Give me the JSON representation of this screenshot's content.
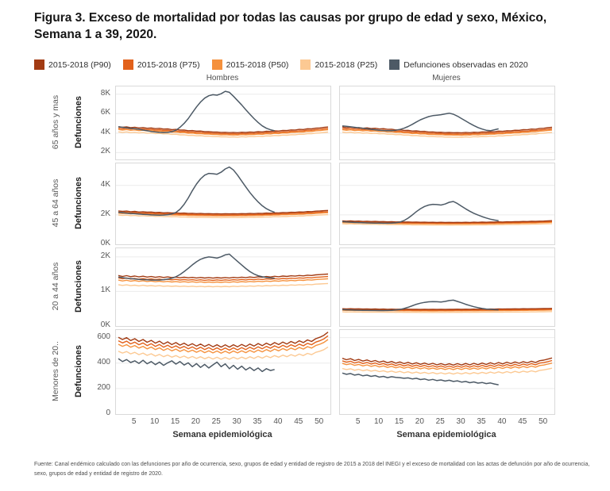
{
  "title": "Figura 3. Exceso de mortalidad por todas las causas por grupo de edad y sexo, México, Semana 1 a 39, 2020.",
  "footer": {
    "source": "Fuente: Canal endémico calculado con las defunciones por año de ocurrencia, sexo, grupos de edad y entidad de registro de 2015 a 2018 del INEGI y el exceso de mortalidad con las actas de defunción por año de ocurrencia, sexo, grupos de edad y entidad de registro de 2020."
  },
  "chart_data": {
    "type": "line",
    "title": "Exceso de mortalidad por todas las causas por grupo de edad y sexo, México, Semana 1 a 39, 2020",
    "columns": [
      "Hombres",
      "Mujeres"
    ],
    "y_axis_label": "Defunciones",
    "x_label": "Semana epidemiológica",
    "x_ticks": [
      5,
      10,
      15,
      20,
      25,
      30,
      35,
      40,
      45,
      50
    ],
    "baseline_week_range": [
      1,
      52
    ],
    "observed_week_range": [
      1,
      39
    ],
    "legend": [
      {
        "label": "2015-2018 (P90)",
        "color": "#a23b13"
      },
      {
        "label": "2015-2018 (P75)",
        "color": "#e2611b"
      },
      {
        "label": "2015-2018 (P50)",
        "color": "#f5913d"
      },
      {
        "label": "2015-2018 (P25)",
        "color": "#fcc993"
      },
      {
        "label": "Defunciones observadas en 2020",
        "color": "#4d5a66"
      }
    ],
    "rows": [
      {
        "label": "65 años y mas",
        "ylim": [
          1300,
          8800
        ],
        "ticks": [
          [
            2000,
            "2K"
          ],
          [
            4000,
            "4K"
          ],
          [
            6000,
            "6K"
          ],
          [
            8000,
            "8K"
          ]
        ],
        "band_factors": {
          "p90": 1.065,
          "p75": 1.03,
          "p25": 0.945
        }
      },
      {
        "label": "45 a 64 años",
        "ylim": [
          0,
          5500
        ],
        "ticks": [
          [
            0,
            "0K"
          ],
          [
            2000,
            "2K"
          ],
          [
            4000,
            "4K"
          ]
        ],
        "band_factors": {
          "p90": 1.07,
          "p75": 1.032,
          "p25": 0.94
        }
      },
      {
        "label": "20 a 44 años",
        "ylim": [
          0,
          2250
        ],
        "ticks": [
          [
            0,
            "0K"
          ],
          [
            1000,
            "1K"
          ],
          [
            2000,
            "2K"
          ]
        ],
        "band_factors": {
          "p90": 1.1,
          "p75": 1.048,
          "p25": 0.9
        }
      },
      {
        "label": "Menores de 20..",
        "ylim": [
          0,
          660
        ],
        "ticks": [
          [
            0,
            "0"
          ],
          [
            200,
            "200"
          ],
          [
            400,
            "400"
          ],
          [
            600,
            "600"
          ]
        ],
        "band_factors": {
          "p90": 1.1,
          "p75": 1.05,
          "p25": 0.9
        }
      }
    ],
    "panels": [
      [
        {
          "p50": [
            4380,
            4320,
            4370,
            4290,
            4330,
            4260,
            4300,
            4230,
            4260,
            4190,
            4220,
            4150,
            4170,
            4100,
            4120,
            4050,
            4060,
            3990,
            4010,
            3950,
            3960,
            3900,
            3910,
            3860,
            3870,
            3830,
            3840,
            3810,
            3830,
            3800,
            3850,
            3820,
            3870,
            3850,
            3900,
            3880,
            3940,
            3920,
            3980,
            3960,
            4020,
            4010,
            4070,
            4060,
            4120,
            4110,
            4180,
            4170,
            4240,
            4260,
            4310,
            4350
          ],
          "observed_2020": [
            4650,
            4600,
            4550,
            4500,
            4450,
            4400,
            4320,
            4250,
            4180,
            4120,
            4080,
            4060,
            4080,
            4150,
            4300,
            4600,
            5000,
            5500,
            6100,
            6700,
            7200,
            7600,
            7850,
            7950,
            7900,
            8050,
            8300,
            8200,
            7800,
            7350,
            6900,
            6400,
            5950,
            5500,
            5100,
            4750,
            4500,
            4350,
            4250
          ]
        },
        {
          "p50": [
            4350,
            4290,
            4340,
            4260,
            4300,
            4230,
            4270,
            4200,
            4230,
            4160,
            4190,
            4120,
            4140,
            4070,
            4090,
            4020,
            4030,
            3960,
            3980,
            3920,
            3930,
            3870,
            3880,
            3840,
            3850,
            3810,
            3820,
            3800,
            3810,
            3790,
            3830,
            3800,
            3850,
            3830,
            3880,
            3860,
            3910,
            3890,
            3950,
            3930,
            3990,
            3980,
            4040,
            4030,
            4090,
            4080,
            4150,
            4140,
            4210,
            4230,
            4280,
            4320
          ],
          "observed_2020": [
            4750,
            4700,
            4650,
            4600,
            4550,
            4500,
            4450,
            4400,
            4350,
            4300,
            4270,
            4250,
            4260,
            4300,
            4380,
            4500,
            4680,
            4900,
            5150,
            5380,
            5550,
            5700,
            5800,
            5850,
            5900,
            5980,
            6050,
            5950,
            5750,
            5500,
            5250,
            5000,
            4780,
            4580,
            4420,
            4300,
            4250,
            4350,
            4450
          ]
        }
      ],
      [
        {
          "p50": [
            2120,
            2090,
            2110,
            2070,
            2090,
            2050,
            2070,
            2040,
            2050,
            2020,
            2030,
            2000,
            2010,
            1990,
            2000,
            1975,
            1985,
            1960,
            1970,
            1950,
            1960,
            1945,
            1950,
            1935,
            1945,
            1930,
            1940,
            1935,
            1945,
            1935,
            1950,
            1940,
            1960,
            1950,
            1970,
            1960,
            1985,
            1975,
            2000,
            1990,
            2015,
            2010,
            2035,
            2030,
            2055,
            2050,
            2080,
            2075,
            2105,
            2115,
            2135,
            2150
          ],
          "observed_2020": [
            2180,
            2150,
            2120,
            2100,
            2080,
            2060,
            2040,
            2020,
            2000,
            1990,
            1985,
            1990,
            2010,
            2060,
            2170,
            2380,
            2720,
            3150,
            3650,
            4100,
            4450,
            4700,
            4820,
            4800,
            4760,
            4900,
            5120,
            5250,
            5050,
            4700,
            4300,
            3900,
            3520,
            3180,
            2880,
            2620,
            2420,
            2280,
            2180
          ]
        },
        {
          "p50": [
            1490,
            1470,
            1485,
            1460,
            1475,
            1450,
            1465,
            1445,
            1455,
            1435,
            1445,
            1425,
            1435,
            1420,
            1428,
            1412,
            1420,
            1405,
            1412,
            1400,
            1408,
            1396,
            1402,
            1392,
            1400,
            1390,
            1396,
            1390,
            1398,
            1390,
            1400,
            1393,
            1405,
            1398,
            1410,
            1403,
            1418,
            1410,
            1425,
            1418,
            1432,
            1426,
            1440,
            1435,
            1450,
            1445,
            1460,
            1455,
            1470,
            1478,
            1490,
            1500
          ],
          "observed_2020": [
            1540,
            1520,
            1505,
            1490,
            1478,
            1468,
            1458,
            1450,
            1443,
            1438,
            1434,
            1432,
            1440,
            1460,
            1510,
            1610,
            1780,
            1990,
            2220,
            2420,
            2570,
            2670,
            2720,
            2700,
            2670,
            2740,
            2860,
            2910,
            2770,
            2590,
            2410,
            2250,
            2110,
            1990,
            1880,
            1790,
            1710,
            1650,
            1600
          ]
        }
      ],
      [
        {
          "p50": [
            1330,
            1305,
            1325,
            1298,
            1315,
            1292,
            1310,
            1288,
            1302,
            1282,
            1298,
            1278,
            1292,
            1275,
            1288,
            1270,
            1284,
            1268,
            1280,
            1265,
            1278,
            1262,
            1275,
            1260,
            1274,
            1262,
            1276,
            1264,
            1280,
            1268,
            1285,
            1272,
            1290,
            1278,
            1296,
            1284,
            1302,
            1290,
            1308,
            1296,
            1315,
            1304,
            1322,
            1312,
            1330,
            1320,
            1338,
            1330,
            1346,
            1352,
            1360,
            1368
          ],
          "observed_2020": [
            1420,
            1400,
            1385,
            1372,
            1360,
            1350,
            1342,
            1336,
            1332,
            1330,
            1332,
            1340,
            1356,
            1382,
            1425,
            1490,
            1575,
            1670,
            1770,
            1860,
            1930,
            1975,
            2000,
            1985,
            1965,
            2005,
            2060,
            2080,
            1975,
            1870,
            1765,
            1665,
            1575,
            1505,
            1455,
            1425,
            1405,
            1392,
            1382
          ]
        },
        {
          "p50": [
            456,
            450,
            454,
            448,
            452,
            446,
            450,
            445,
            448,
            443,
            446,
            441,
            445,
            440,
            443,
            439,
            442,
            438,
            441,
            437,
            440,
            436,
            439,
            436,
            440,
            437,
            441,
            438,
            442,
            439,
            443,
            440,
            444,
            441,
            446,
            443,
            447,
            444,
            448,
            446,
            450,
            448,
            452,
            450,
            454,
            452,
            456,
            454,
            458,
            460,
            462,
            464
          ],
          "observed_2020": [
            472,
            468,
            464,
            460,
            457,
            454,
            452,
            450,
            449,
            448,
            448,
            450,
            455,
            463,
            478,
            505,
            542,
            585,
            628,
            662,
            685,
            700,
            708,
            702,
            696,
            712,
            736,
            748,
            712,
            672,
            630,
            592,
            558,
            530,
            508,
            492,
            481,
            473,
            468
          ]
        }
      ],
      [
        {
          "p50": [
            548,
            532,
            545,
            525,
            538,
            518,
            532,
            512,
            526,
            506,
            520,
            500,
            515,
            496,
            510,
            492,
            506,
            488,
            502,
            485,
            500,
            482,
            497,
            480,
            495,
            478,
            494,
            478,
            495,
            480,
            497,
            482,
            500,
            485,
            503,
            488,
            506,
            492,
            510,
            496,
            514,
            500,
            518,
            505,
            523,
            510,
            529,
            518,
            538,
            548,
            562,
            585
          ],
          "observed_2020": [
            435,
            412,
            428,
            405,
            418,
            398,
            422,
            395,
            412,
            388,
            408,
            382,
            402,
            418,
            392,
            412,
            385,
            402,
            372,
            396,
            366,
            390,
            362,
            386,
            408,
            372,
            394,
            356,
            382,
            352,
            376,
            346,
            366,
            342,
            362,
            334,
            356,
            342,
            350
          ]
        },
        {
          "p50": [
            398,
            388,
            395,
            382,
            390,
            378,
            386,
            374,
            382,
            370,
            378,
            366,
            375,
            363,
            372,
            360,
            369,
            357,
            366,
            355,
            364,
            353,
            362,
            351,
            360,
            350,
            359,
            349,
            360,
            350,
            361,
            351,
            362,
            352,
            364,
            354,
            366,
            356,
            368,
            358,
            370,
            360,
            372,
            362,
            374,
            365,
            377,
            368,
            381,
            385,
            392,
            400
          ],
          "observed_2020": [
            322,
            312,
            318,
            306,
            312,
            300,
            306,
            296,
            302,
            290,
            296,
            286,
            293,
            288,
            286,
            281,
            284,
            276,
            281,
            271,
            276,
            266,
            272,
            263,
            268,
            259,
            265,
            256,
            261,
            251,
            256,
            246,
            252,
            243,
            248,
            239,
            244,
            236,
            230
          ]
        }
      ]
    ]
  }
}
